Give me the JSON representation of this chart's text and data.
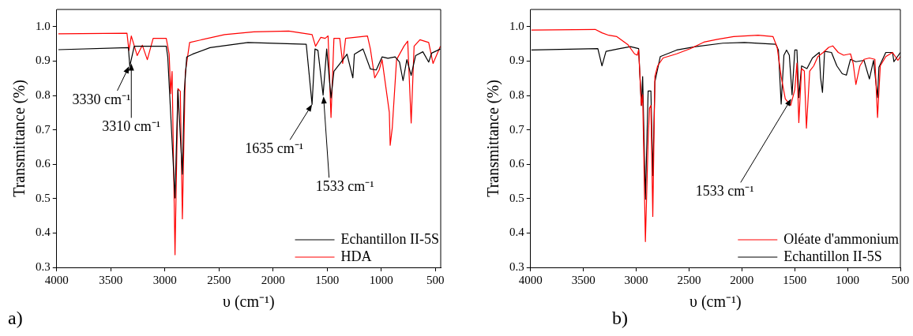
{
  "chart_data": [
    {
      "type": "line",
      "xlabel": "υ (cm⁻¹)",
      "ylabel": "Transmittance (%)",
      "xlim": [
        4000,
        450
      ],
      "ylim": [
        0.3,
        1.05
      ],
      "xticks": [
        4000,
        3500,
        3000,
        2500,
        2000,
        1500,
        1000,
        500
      ],
      "yticks": [
        0.3,
        0.4,
        0.5,
        0.6,
        0.7,
        0.8,
        0.9,
        {
          "value": 1,
          "label": "1.0"
        }
      ],
      "legend": "bottom right",
      "series": [
        {
          "name": "Echantillon II-5S",
          "color": "#000000",
          "x": [
            3984,
            3337,
            3324,
            3283,
            2987,
            2973,
            2906,
            2879,
            2838,
            2820,
            2798,
            2744,
            2582,
            2232,
            1693,
            1639,
            1612,
            1585,
            1537,
            1504,
            1464,
            1437,
            1370,
            1316,
            1262,
            1248,
            1168,
            1100,
            1046,
            992,
            938,
            871,
            831,
            798,
            763,
            723,
            682,
            615,
            561,
            534,
            453
          ],
          "values": [
            0.933,
            0.939,
            0.885,
            0.943,
            0.943,
            0.912,
            0.502,
            0.816,
            0.571,
            0.812,
            0.912,
            0.92,
            0.939,
            0.954,
            0.949,
            0.774,
            0.935,
            0.931,
            0.801,
            0.935,
            0.793,
            0.87,
            0.897,
            0.92,
            0.851,
            0.92,
            0.935,
            0.877,
            0.874,
            0.912,
            0.908,
            0.912,
            0.897,
            0.843,
            0.904,
            0.858,
            0.916,
            0.927,
            0.897,
            0.923,
            0.935
          ]
        },
        {
          "name": "HDA",
          "color": "#ff0000",
          "x": [
            3984,
            3350,
            3332,
            3310,
            3256,
            3208,
            3162,
            3108,
            2987,
            2960,
            2946,
            2933,
            2906,
            2879,
            2857,
            2838,
            2811,
            2771,
            2448,
            2178,
            1855,
            1639,
            1607,
            1558,
            1518,
            1491,
            1464,
            1437,
            1383,
            1356,
            1329,
            1127,
            1100,
            1060,
            1019,
            992,
            925,
            917,
            898,
            858,
            790,
            755,
            723,
            696,
            642,
            561,
            521,
            453
          ],
          "values": [
            0.979,
            0.981,
            0.931,
            0.973,
            0.916,
            0.946,
            0.904,
            0.966,
            0.966,
            0.92,
            0.805,
            0.87,
            0.337,
            0.82,
            0.812,
            0.441,
            0.866,
            0.954,
            0.977,
            0.985,
            0.987,
            0.977,
            0.943,
            0.969,
            0.966,
            0.973,
            0.736,
            0.966,
            0.966,
            0.893,
            0.966,
            0.973,
            0.935,
            0.851,
            0.874,
            0.904,
            0.751,
            0.655,
            0.705,
            0.904,
            0.943,
            0.958,
            0.72,
            0.943,
            0.962,
            0.954,
            0.893,
            0.943
          ]
        }
      ],
      "annotations": [
        {
          "text": "3330 cm⁻¹",
          "x": 3330,
          "y": 0.885
        },
        {
          "text": "3310 cm⁻¹",
          "x": 3310,
          "y": 0.893
        },
        {
          "text": "1635 cm⁻¹",
          "x": 1639,
          "y": 0.774
        },
        {
          "text": "1533 cm⁻¹",
          "x": 1533,
          "y": 0.797
        },
        "a)"
      ]
    },
    {
      "type": "line",
      "xlabel": "υ (cm⁻¹)",
      "ylabel": "Transmittance (%)",
      "xlim": [
        4000,
        500
      ],
      "ylim": [
        0.3,
        1.05
      ],
      "xticks": [
        4000,
        3500,
        3000,
        2500,
        2000,
        1500,
        1000,
        500
      ],
      "yticks": [
        0.3,
        0.4,
        0.5,
        0.6,
        0.7,
        0.8,
        0.9,
        {
          "value": 1,
          "label": "1.0"
        }
      ],
      "legend": "bottom right",
      "series": [
        {
          "name": "Oléate d'ammonium",
          "color": "#ff0000",
          "x": [
            3992,
            3388,
            3324,
            3260,
            3183,
            3080,
            3016,
            2990,
            2977,
            2951,
            2939,
            2913,
            2887,
            2874,
            2861,
            2843,
            2823,
            2797,
            2746,
            2617,
            2489,
            2360,
            2232,
            2078,
            1846,
            1705,
            1666,
            1628,
            1589,
            1538,
            1499,
            1479,
            1461,
            1435,
            1409,
            1389,
            1358,
            1320,
            1281,
            1230,
            1178,
            1140,
            1088,
            1037,
            972,
            947,
            921,
            883,
            844,
            793,
            741,
            716,
            690,
            638,
            574,
            523,
            500
          ],
          "values": [
            0.99,
            0.992,
            0.982,
            0.975,
            0.971,
            0.948,
            0.921,
            0.917,
            0.932,
            0.771,
            0.802,
            0.375,
            0.671,
            0.763,
            0.771,
            0.448,
            0.855,
            0.886,
            0.909,
            0.921,
            0.936,
            0.955,
            0.963,
            0.971,
            0.975,
            0.971,
            0.94,
            0.855,
            0.79,
            0.771,
            0.817,
            0.894,
            0.721,
            0.878,
            0.871,
            0.705,
            0.871,
            0.886,
            0.913,
            0.925,
            0.94,
            0.944,
            0.925,
            0.917,
            0.921,
            0.894,
            0.832,
            0.886,
            0.905,
            0.909,
            0.905,
            0.736,
            0.886,
            0.913,
            0.925,
            0.902,
            0.913
          ]
        },
        {
          "name": "Echantillon II-5S",
          "color": "#000000",
          "x": [
            3992,
            3363,
            3324,
            3286,
            3157,
            3054,
            2977,
            2951,
            2939,
            2913,
            2887,
            2861,
            2843,
            2823,
            2772,
            2617,
            2437,
            2181,
            1975,
            1679,
            1654,
            1628,
            1602,
            1577,
            1551,
            1525,
            1499,
            1479,
            1461,
            1435,
            1384,
            1332,
            1268,
            1255,
            1237,
            1217,
            1152,
            1101,
            1050,
            1011,
            972,
            921,
            844,
            793,
            754,
            716,
            703,
            638,
            574,
            561,
            500
          ],
          "values": [
            0.932,
            0.936,
            0.886,
            0.928,
            0.936,
            0.942,
            0.936,
            0.771,
            0.855,
            0.498,
            0.813,
            0.813,
            0.567,
            0.84,
            0.913,
            0.932,
            0.942,
            0.952,
            0.954,
            0.949,
            0.932,
            0.775,
            0.917,
            0.932,
            0.917,
            0.802,
            0.932,
            0.932,
            0.794,
            0.886,
            0.878,
            0.909,
            0.925,
            0.852,
            0.809,
            0.928,
            0.925,
            0.886,
            0.863,
            0.859,
            0.905,
            0.898,
            0.902,
            0.848,
            0.902,
            0.794,
            0.882,
            0.925,
            0.925,
            0.898,
            0.925
          ]
        }
      ],
      "annotations": [
        {
          "text": "1533 cm⁻¹",
          "x": 1533,
          "y": 0.79
        },
        "b)"
      ]
    }
  ]
}
